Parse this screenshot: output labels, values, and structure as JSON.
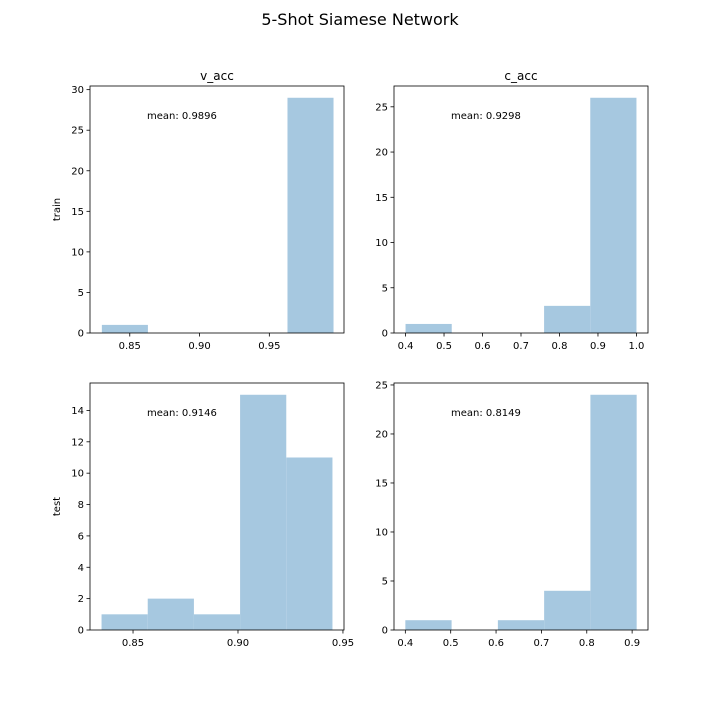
{
  "figure": {
    "title": "5-Shot Siamese Network",
    "bar_color": "#a6c8e0"
  },
  "chart_data": [
    {
      "type": "bar",
      "subtitle": "v_acc",
      "ylabel": "train",
      "annotation": "mean: 0.9896",
      "xlim": [
        0.8215,
        1.0035
      ],
      "ylim": [
        0,
        30.45
      ],
      "xticks": [
        0.85,
        0.9,
        0.95
      ],
      "xtick_labels": [
        "0.85",
        "0.90",
        "0.95"
      ],
      "yticks": [
        0,
        5,
        10,
        15,
        20,
        25,
        30
      ],
      "ytick_labels": [
        "0",
        "5",
        "10",
        "15",
        "20",
        "25",
        "30"
      ],
      "bin_edges": [
        0.83,
        0.863,
        0.897,
        0.93,
        0.963,
        0.996
      ],
      "values": [
        1,
        0,
        0,
        0,
        29
      ]
    },
    {
      "type": "bar",
      "subtitle": "c_acc",
      "ylabel": "",
      "annotation": "mean: 0.9298",
      "xlim": [
        0.37,
        1.03
      ],
      "ylim": [
        0,
        27.3
      ],
      "xticks": [
        0.4,
        0.5,
        0.6,
        0.7,
        0.8,
        0.9,
        1.0
      ],
      "xtick_labels": [
        "0.4",
        "0.5",
        "0.6",
        "0.7",
        "0.8",
        "0.9",
        "1.0"
      ],
      "yticks": [
        0,
        5,
        10,
        15,
        20,
        25
      ],
      "ytick_labels": [
        "0",
        "5",
        "10",
        "15",
        "20",
        "25"
      ],
      "bin_edges": [
        0.4,
        0.52,
        0.64,
        0.76,
        0.88,
        1.0
      ],
      "values": [
        1,
        0,
        0,
        3,
        26
      ]
    },
    {
      "type": "bar",
      "subtitle": "",
      "ylabel": "test",
      "annotation": "mean: 0.9146",
      "xlim": [
        0.8295,
        0.9505
      ],
      "ylim": [
        0,
        15.75
      ],
      "xticks": [
        0.85,
        0.9,
        0.95
      ],
      "xtick_labels": [
        "0.85",
        "0.90",
        "0.95"
      ],
      "yticks": [
        0,
        2,
        4,
        6,
        8,
        10,
        12,
        14
      ],
      "ytick_labels": [
        "0",
        "2",
        "4",
        "6",
        "8",
        "10",
        "12",
        "14"
      ],
      "bin_edges": [
        0.835,
        0.857,
        0.879,
        0.901,
        0.923,
        0.945
      ],
      "values": [
        1,
        2,
        1,
        15,
        11
      ]
    },
    {
      "type": "bar",
      "subtitle": "",
      "ylabel": "",
      "annotation": "mean: 0.8149",
      "xlim": [
        0.375,
        0.935
      ],
      "ylim": [
        0,
        25.2
      ],
      "xticks": [
        0.4,
        0.5,
        0.6,
        0.7,
        0.8,
        0.9
      ],
      "xtick_labels": [
        "0.4",
        "0.5",
        "0.6",
        "0.7",
        "0.8",
        "0.9"
      ],
      "yticks": [
        0,
        5,
        10,
        15,
        20,
        25
      ],
      "ytick_labels": [
        "0",
        "5",
        "10",
        "15",
        "20",
        "25"
      ],
      "bin_edges": [
        0.4,
        0.502,
        0.604,
        0.706,
        0.808,
        0.91
      ],
      "values": [
        1,
        0,
        1,
        4,
        24
      ]
    }
  ]
}
